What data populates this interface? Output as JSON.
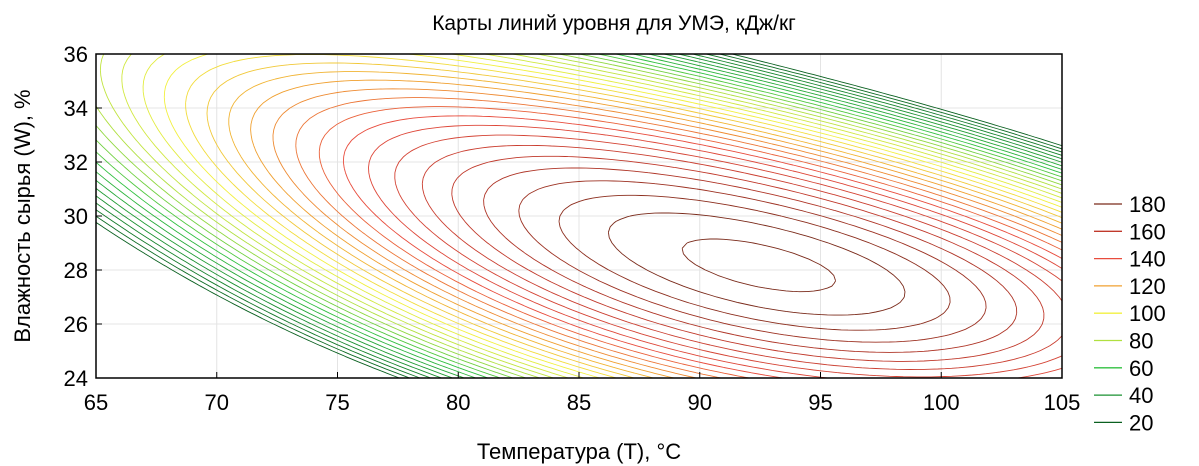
{
  "chart_data": {
    "type": "contour",
    "title": "Карты линий уровня для УМЭ, кДж/кг",
    "xlabel": "Температура (Т), °С",
    "ylabel": "Влажность сырья (W), %",
    "xlim": [
      65,
      105
    ],
    "ylim": [
      24,
      36
    ],
    "x_ticks": [
      "65",
      "70",
      "75",
      "80",
      "85",
      "90",
      "95",
      "100",
      "105"
    ],
    "y_ticks": [
      "24",
      "26",
      "28",
      "30",
      "32",
      "34",
      "36"
    ],
    "grid": true,
    "legend_position": "right",
    "legend": [
      {
        "label": "180",
        "value": 180,
        "color": "#7a2a1a"
      },
      {
        "label": "160",
        "value": 160,
        "color": "#c0392b"
      },
      {
        "label": "140",
        "value": 140,
        "color": "#e84c3d"
      },
      {
        "label": "120",
        "value": 120,
        "color": "#f0a030"
      },
      {
        "label": "100",
        "value": 100,
        "color": "#f2f040"
      },
      {
        "label": "80",
        "value": 80,
        "color": "#b0e040"
      },
      {
        "label": "60",
        "value": 60,
        "color": "#30c040"
      },
      {
        "label": "40",
        "value": 40,
        "color": "#1a9030"
      },
      {
        "label": "20",
        "value": 20,
        "color": "#0a6020"
      }
    ],
    "z_range": [
      20,
      185
    ],
    "peak_region": {
      "x": 90,
      "y": 29
    }
  }
}
